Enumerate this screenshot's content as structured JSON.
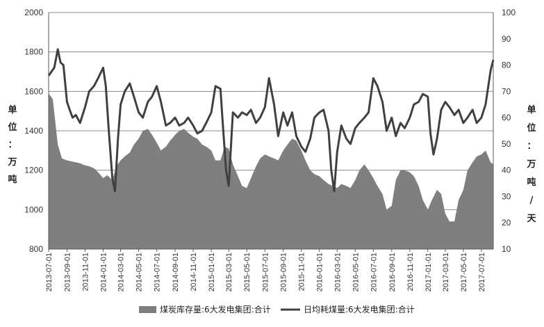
{
  "chart_data": {
    "type": "area+line",
    "xlim": [
      "2013-07-01",
      "2017-08-10"
    ],
    "x_ticks": [
      "2013-07-01",
      "2013-09-01",
      "2013-11-01",
      "2014-01-01",
      "2014-03-01",
      "2014-05-01",
      "2014-07-01",
      "2014-09-01",
      "2014-11-01",
      "2015-01-01",
      "2015-03-01",
      "2015-05-01",
      "2015-07-01",
      "2015-09-01",
      "2015-11-01",
      "2016-01-01",
      "2016-03-01",
      "2016-05-01",
      "2016-07-01",
      "2016-09-01",
      "2016-11-01",
      "2017-01-01",
      "2017-03-01",
      "2017-05-01",
      "2017-07-01"
    ],
    "y_left": {
      "label": "单位：万吨",
      "lim": [
        800,
        2000
      ],
      "ticks": [
        800,
        1000,
        1200,
        1400,
        1600,
        1800,
        2000
      ]
    },
    "y_right": {
      "label": "单位：万吨/天",
      "lim": [
        10,
        100
      ],
      "ticks": [
        10,
        20,
        30,
        40,
        50,
        60,
        70,
        80,
        90,
        100
      ]
    },
    "grid": true,
    "legend_position": "bottom",
    "series": [
      {
        "name": "煤炭库存量:6大发电集团:合计",
        "kind": "area",
        "axis": "left",
        "color": "#7f7f7f",
        "x": [
          "2013-07-01",
          "2013-07-15",
          "2013-08-01",
          "2013-08-15",
          "2013-09-01",
          "2013-09-15",
          "2013-10-01",
          "2013-10-15",
          "2013-11-01",
          "2013-11-15",
          "2013-12-01",
          "2013-12-15",
          "2014-01-01",
          "2014-01-15",
          "2014-02-01",
          "2014-02-15",
          "2014-03-01",
          "2014-03-15",
          "2014-04-01",
          "2014-04-15",
          "2014-05-01",
          "2014-05-15",
          "2014-06-01",
          "2014-06-15",
          "2014-07-01",
          "2014-07-15",
          "2014-08-01",
          "2014-08-15",
          "2014-09-01",
          "2014-09-15",
          "2014-10-01",
          "2014-10-15",
          "2014-11-01",
          "2014-11-15",
          "2014-12-01",
          "2014-12-15",
          "2015-01-01",
          "2015-01-15",
          "2015-02-01",
          "2015-02-15",
          "2015-03-01",
          "2015-03-15",
          "2015-04-01",
          "2015-04-15",
          "2015-05-01",
          "2015-05-15",
          "2015-06-01",
          "2015-06-15",
          "2015-07-01",
          "2015-07-15",
          "2015-08-01",
          "2015-08-15",
          "2015-09-01",
          "2015-09-15",
          "2015-10-01",
          "2015-10-15",
          "2015-11-01",
          "2015-11-15",
          "2015-12-01",
          "2015-12-15",
          "2016-01-01",
          "2016-01-15",
          "2016-02-01",
          "2016-02-15",
          "2016-03-01",
          "2016-03-15",
          "2016-04-01",
          "2016-04-15",
          "2016-05-01",
          "2016-05-15",
          "2016-06-01",
          "2016-06-15",
          "2016-07-01",
          "2016-07-15",
          "2016-08-01",
          "2016-08-15",
          "2016-09-01",
          "2016-09-15",
          "2016-10-01",
          "2016-10-15",
          "2016-11-01",
          "2016-11-15",
          "2016-12-01",
          "2016-12-15",
          "2017-01-01",
          "2017-01-15",
          "2017-02-01",
          "2017-02-15",
          "2017-03-01",
          "2017-03-15",
          "2017-04-01",
          "2017-04-15",
          "2017-05-01",
          "2017-05-15",
          "2017-06-01",
          "2017-06-15",
          "2017-07-01",
          "2017-07-15",
          "2017-08-01",
          "2017-08-10"
        ],
        "values": [
          1590,
          1560,
          1330,
          1260,
          1250,
          1245,
          1240,
          1235,
          1225,
          1220,
          1210,
          1190,
          1160,
          1175,
          1150,
          1220,
          1250,
          1270,
          1290,
          1330,
          1360,
          1400,
          1410,
          1380,
          1340,
          1300,
          1320,
          1350,
          1380,
          1400,
          1410,
          1390,
          1370,
          1360,
          1330,
          1320,
          1300,
          1250,
          1250,
          1320,
          1310,
          1230,
          1170,
          1120,
          1110,
          1160,
          1220,
          1260,
          1280,
          1270,
          1260,
          1250,
          1300,
          1330,
          1360,
          1350,
          1300,
          1250,
          1200,
          1180,
          1170,
          1150,
          1130,
          1120,
          1110,
          1130,
          1120,
          1110,
          1150,
          1200,
          1230,
          1200,
          1160,
          1120,
          1080,
          1000,
          1020,
          1150,
          1200,
          1200,
          1190,
          1170,
          1120,
          1050,
          1000,
          1050,
          1100,
          1080,
          980,
          940,
          940,
          1050,
          1100,
          1200,
          1240,
          1270,
          1280,
          1300,
          1240,
          1230
        ]
      },
      {
        "name": "日均耗煤量:6大发电集团:合计",
        "kind": "line",
        "axis": "right",
        "color": "#404040",
        "x": [
          "2013-07-01",
          "2013-07-20",
          "2013-08-01",
          "2013-08-10",
          "2013-08-20",
          "2013-09-01",
          "2013-09-10",
          "2013-09-20",
          "2013-10-01",
          "2013-10-15",
          "2013-11-01",
          "2013-11-15",
          "2013-12-01",
          "2013-12-15",
          "2014-01-01",
          "2014-01-10",
          "2014-01-20",
          "2014-02-01",
          "2014-02-10",
          "2014-02-20",
          "2014-03-01",
          "2014-03-15",
          "2014-04-01",
          "2014-04-15",
          "2014-05-01",
          "2014-05-15",
          "2014-06-01",
          "2014-06-15",
          "2014-07-01",
          "2014-07-15",
          "2014-08-01",
          "2014-08-15",
          "2014-09-01",
          "2014-09-15",
          "2014-10-01",
          "2014-10-15",
          "2014-11-01",
          "2014-11-15",
          "2014-12-01",
          "2014-12-15",
          "2015-01-01",
          "2015-01-15",
          "2015-02-01",
          "2015-02-10",
          "2015-02-20",
          "2015-03-01",
          "2015-03-15",
          "2015-04-01",
          "2015-04-15",
          "2015-05-01",
          "2015-05-15",
          "2015-06-01",
          "2015-06-15",
          "2015-07-01",
          "2015-07-15",
          "2015-08-01",
          "2015-08-15",
          "2015-09-01",
          "2015-09-15",
          "2015-10-01",
          "2015-10-15",
          "2015-11-01",
          "2015-11-15",
          "2015-12-01",
          "2015-12-15",
          "2016-01-01",
          "2016-01-15",
          "2016-02-01",
          "2016-02-10",
          "2016-02-20",
          "2016-03-01",
          "2016-03-15",
          "2016-04-01",
          "2016-04-15",
          "2016-05-01",
          "2016-05-15",
          "2016-06-01",
          "2016-06-15",
          "2016-07-01",
          "2016-07-15",
          "2016-08-01",
          "2016-08-15",
          "2016-09-01",
          "2016-09-15",
          "2016-10-01",
          "2016-10-15",
          "2016-11-01",
          "2016-11-15",
          "2016-12-01",
          "2016-12-15",
          "2017-01-01",
          "2017-01-10",
          "2017-01-20",
          "2017-02-01",
          "2017-02-15",
          "2017-03-01",
          "2017-03-15",
          "2017-04-01",
          "2017-04-15",
          "2017-05-01",
          "2017-05-15",
          "2017-06-01",
          "2017-06-15",
          "2017-07-01",
          "2017-07-15",
          "2017-08-01",
          "2017-08-10"
        ],
        "values": [
          76,
          79,
          86,
          81,
          80,
          66,
          63,
          60,
          61,
          58,
          64,
          70,
          72,
          75,
          79,
          72,
          55,
          37,
          32,
          52,
          65,
          70,
          73,
          68,
          62,
          60,
          66,
          68,
          72,
          66,
          57,
          58,
          60,
          57,
          58,
          60,
          57,
          54,
          55,
          58,
          62,
          72,
          71,
          56,
          40,
          34,
          62,
          60,
          62,
          61,
          63,
          58,
          60,
          64,
          75,
          65,
          53,
          62,
          57,
          62,
          53,
          49,
          47,
          52,
          60,
          62,
          63,
          55,
          40,
          32,
          47,
          57,
          52,
          50,
          56,
          58,
          60,
          62,
          75,
          72,
          66,
          55,
          60,
          53,
          58,
          56,
          60,
          65,
          66,
          69,
          68,
          54,
          46,
          52,
          63,
          66,
          64,
          61,
          63,
          58,
          60,
          63,
          58,
          60,
          65,
          78,
          82
        ]
      }
    ]
  }
}
